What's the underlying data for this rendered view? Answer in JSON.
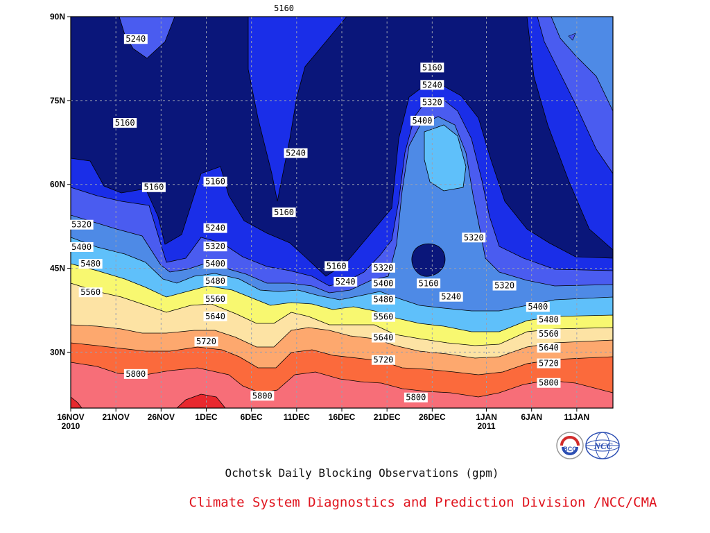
{
  "chart_data": {
    "type": "contour",
    "title": "Ochotsk Daily Blocking Observations (gpm)",
    "credit": "Climate System Diagnostics and Prediction Division /NCC/CMA",
    "x_ticks": [
      {
        "day": 0,
        "label": "16NOV",
        "sub": "2010"
      },
      {
        "day": 5,
        "label": "21NOV",
        "sub": ""
      },
      {
        "day": 10,
        "label": "26NOV",
        "sub": ""
      },
      {
        "day": 15,
        "label": "1DEC",
        "sub": ""
      },
      {
        "day": 20,
        "label": "6DEC",
        "sub": ""
      },
      {
        "day": 25,
        "label": "11DEC",
        "sub": ""
      },
      {
        "day": 30,
        "label": "16DEC",
        "sub": ""
      },
      {
        "day": 35,
        "label": "21DEC",
        "sub": ""
      },
      {
        "day": 40,
        "label": "26DEC",
        "sub": ""
      },
      {
        "day": 46,
        "label": "1JAN",
        "sub": "2011"
      },
      {
        "day": 51,
        "label": "6JAN",
        "sub": ""
      },
      {
        "day": 56,
        "label": "11JAN",
        "sub": ""
      }
    ],
    "y_ticks": [
      {
        "lat": 90,
        "label": "90N"
      },
      {
        "lat": 75,
        "label": "75N"
      },
      {
        "lat": 60,
        "label": "60N"
      },
      {
        "lat": 45,
        "label": "45N"
      },
      {
        "lat": 30,
        "label": "30N"
      }
    ],
    "xlim": [
      0,
      60
    ],
    "ylim": [
      20,
      90
    ],
    "levels": [
      5160,
      5240,
      5320,
      5400,
      5480,
      5560,
      5640,
      5720,
      5800
    ],
    "colors": [
      "#0a167a",
      "#1a2ee8",
      "#4a5cf0",
      "#4e8ae6",
      "#5fc0fa",
      "#f8f870",
      "#fde3a4",
      "#fda86e",
      "#fb6a3c",
      "#f76e78",
      "#e8282e"
    ],
    "grid": true,
    "contour_labels": [
      {
        "day": 7.2,
        "lat": 86,
        "text": "5240"
      },
      {
        "day": 6.0,
        "lat": 71,
        "text": "5160"
      },
      {
        "day": 9.2,
        "lat": 59.5,
        "text": "5160"
      },
      {
        "day": 16.0,
        "lat": 60.5,
        "text": "5160"
      },
      {
        "day": 23.6,
        "lat": 91.5,
        "text": "5160"
      },
      {
        "day": 24.9,
        "lat": 65.6,
        "text": "5240"
      },
      {
        "day": 23.6,
        "lat": 55,
        "text": "5160"
      },
      {
        "day": 1.2,
        "lat": 52.8,
        "text": "5320"
      },
      {
        "day": 1.2,
        "lat": 48.8,
        "text": "5400"
      },
      {
        "day": 2.2,
        "lat": 45.8,
        "text": "5480"
      },
      {
        "day": 2.2,
        "lat": 40.7,
        "text": "5560"
      },
      {
        "day": 16.0,
        "lat": 52.2,
        "text": "5240"
      },
      {
        "day": 16.0,
        "lat": 48.9,
        "text": "5320"
      },
      {
        "day": 16.0,
        "lat": 45.8,
        "text": "5400"
      },
      {
        "day": 16.0,
        "lat": 42.7,
        "text": "5480"
      },
      {
        "day": 16.0,
        "lat": 39.5,
        "text": "5560"
      },
      {
        "day": 16.0,
        "lat": 36.4,
        "text": "5640"
      },
      {
        "day": 15.0,
        "lat": 31.9,
        "text": "5720"
      },
      {
        "day": 7.2,
        "lat": 26.1,
        "text": "5800"
      },
      {
        "day": 21.2,
        "lat": 22.2,
        "text": "5800"
      },
      {
        "day": 29.4,
        "lat": 45.4,
        "text": "5160"
      },
      {
        "day": 30.4,
        "lat": 42.6,
        "text": "5240"
      },
      {
        "day": 34.6,
        "lat": 45.1,
        "text": "5320"
      },
      {
        "day": 34.6,
        "lat": 42.3,
        "text": "5400"
      },
      {
        "day": 34.6,
        "lat": 39.4,
        "text": "5480"
      },
      {
        "day": 34.6,
        "lat": 36.3,
        "text": "5560"
      },
      {
        "day": 34.6,
        "lat": 32.6,
        "text": "5640"
      },
      {
        "day": 34.6,
        "lat": 28.6,
        "text": "5720"
      },
      {
        "day": 38.2,
        "lat": 21.9,
        "text": "5800"
      },
      {
        "day": 40.0,
        "lat": 80.9,
        "text": "5160"
      },
      {
        "day": 40.0,
        "lat": 77.8,
        "text": "5240"
      },
      {
        "day": 40.0,
        "lat": 74.7,
        "text": "5320"
      },
      {
        "day": 38.9,
        "lat": 71.4,
        "text": "5400"
      },
      {
        "day": 44.6,
        "lat": 50.5,
        "text": "5320"
      },
      {
        "day": 39.6,
        "lat": 42.3,
        "text": "5160"
      },
      {
        "day": 42.1,
        "lat": 39.9,
        "text": "5240"
      },
      {
        "day": 48.0,
        "lat": 41.9,
        "text": "5320"
      },
      {
        "day": 51.7,
        "lat": 38.1,
        "text": "5400"
      },
      {
        "day": 52.9,
        "lat": 35.8,
        "text": "5480"
      },
      {
        "day": 52.9,
        "lat": 33.3,
        "text": "5560"
      },
      {
        "day": 52.9,
        "lat": 30.8,
        "text": "5640"
      },
      {
        "day": 52.9,
        "lat": 28.0,
        "text": "5720"
      },
      {
        "day": 52.9,
        "lat": 24.5,
        "text": "5800"
      }
    ]
  }
}
